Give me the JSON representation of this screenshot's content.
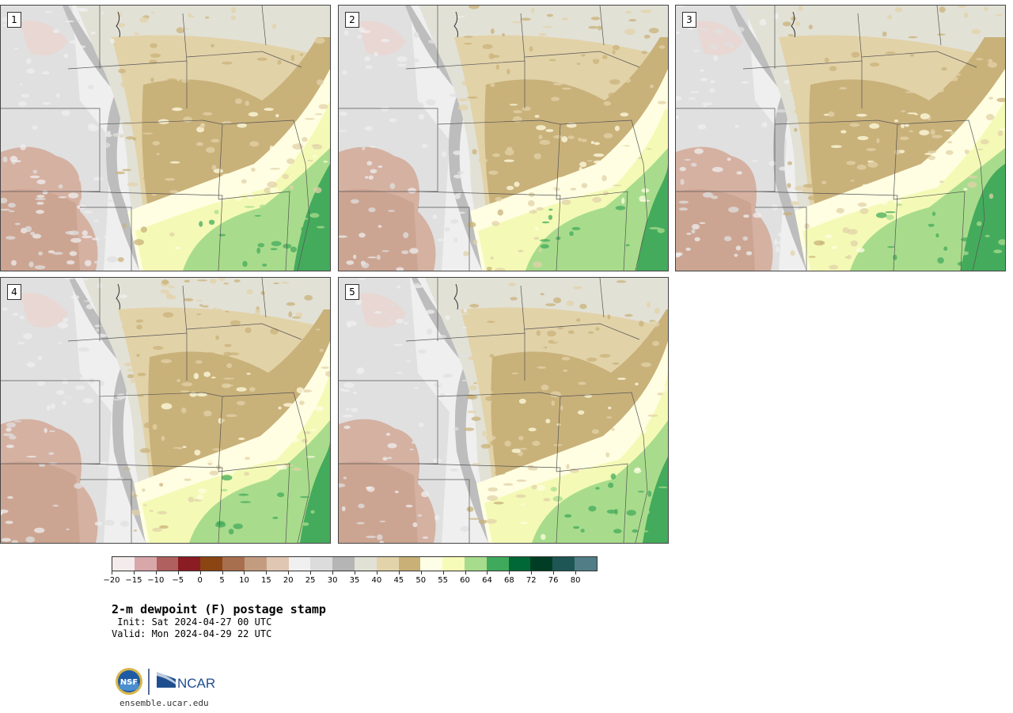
{
  "panels": [
    {
      "label": "1",
      "variant": 0
    },
    {
      "label": "2",
      "variant": 1
    },
    {
      "label": "3",
      "variant": 2
    },
    {
      "label": "4",
      "variant": 3
    },
    {
      "label": "5",
      "variant": 4
    }
  ],
  "colorbar": {
    "colors": [
      "#f4ecec",
      "#d8a7aa",
      "#b0605f",
      "#8a1c24",
      "#8a4512",
      "#a86f4e",
      "#c39c80",
      "#e0c7b3",
      "#f0f0f0",
      "#dcdcdc",
      "#b5b5b5",
      "#e1e1d5",
      "#e2d3ab",
      "#c8b077",
      "#fefee6",
      "#f6fbb7",
      "#a6dc8c",
      "#3faa5b",
      "#006837",
      "#003d24",
      "#1e5656",
      "#507d86"
    ],
    "ticks": [
      "−20",
      "−15",
      "−10",
      "−5",
      "0",
      "5",
      "10",
      "15",
      "20",
      "25",
      "30",
      "35",
      "40",
      "45",
      "50",
      "55",
      "60",
      "64",
      "68",
      "72",
      "76",
      "80"
    ]
  },
  "title": "2-m dewpoint (F) postage stamp",
  "init": " Init: Sat 2024-04-27 00 UTC",
  "valid": "Valid: Mon 2024-04-29 22 UTC",
  "logos": {
    "nsf": "NSF",
    "ncar": "NCAR"
  },
  "website": "ensemble.ucar.edu"
}
